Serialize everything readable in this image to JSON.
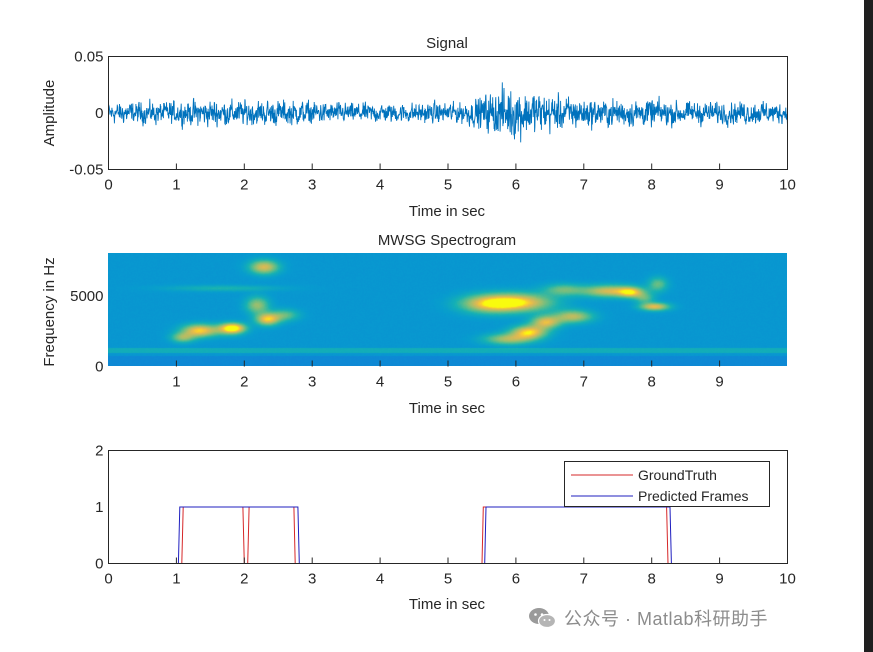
{
  "figure": {
    "plots": [
      {
        "id": "signal",
        "chart_data": {
          "type": "line",
          "title": "Signal",
          "xlabel": "Time in sec",
          "ylabel": "Amplitude",
          "xlim": [
            0,
            10
          ],
          "ylim": [
            -0.05,
            0.05
          ],
          "xticks": [
            "0",
            "1",
            "2",
            "3",
            "4",
            "5",
            "6",
            "7",
            "8",
            "9",
            "10"
          ],
          "yticks": [
            "0.05",
            "0",
            "-0.05"
          ],
          "series": [
            {
              "name": "signal",
              "color": "#0072bd",
              "envelope_t": [
                0,
                0.5,
                1,
                1.5,
                2,
                2.5,
                3,
                3.5,
                4,
                4.5,
                5,
                5.3,
                5.5,
                5.7,
                6,
                6.3,
                6.6,
                7,
                7.5,
                8,
                8.5,
                9,
                9.5,
                10
              ],
              "envelope_amp": [
                0.011,
                0.011,
                0.012,
                0.014,
                0.013,
                0.013,
                0.012,
                0.01,
                0.01,
                0.01,
                0.011,
                0.012,
                0.017,
                0.024,
                0.028,
                0.022,
                0.018,
                0.015,
                0.014,
                0.014,
                0.012,
                0.011,
                0.012,
                0.01
              ]
            }
          ]
        }
      },
      {
        "id": "spectrogram",
        "chart_data": {
          "type": "heatmap",
          "title": "MWSG Spectrogram",
          "xlabel": "Time in sec",
          "ylabel": "Frequency in Hz",
          "xlim": [
            0,
            10
          ],
          "ylim": [
            0,
            8000
          ],
          "xticks": [
            "1",
            "2",
            "3",
            "4",
            "5",
            "6",
            "7",
            "8",
            "9"
          ],
          "yticks": [
            "5000",
            "0"
          ],
          "blobs": [
            {
              "t": 1.35,
              "f": 2500,
              "st": 0.18,
              "sf": 320,
              "a": 0.95
            },
            {
              "t": 1.1,
              "f": 2000,
              "st": 0.12,
              "sf": 250,
              "a": 0.55
            },
            {
              "t": 1.8,
              "f": 2600,
              "st": 0.15,
              "sf": 300,
              "a": 0.6
            },
            {
              "t": 1.85,
              "f": 2700,
              "st": 0.12,
              "sf": 240,
              "a": 0.7
            },
            {
              "t": 2.2,
              "f": 4300,
              "st": 0.12,
              "sf": 420,
              "a": 0.6
            },
            {
              "t": 2.35,
              "f": 3300,
              "st": 0.12,
              "sf": 300,
              "a": 0.9
            },
            {
              "t": 2.3,
              "f": 7000,
              "st": 0.15,
              "sf": 350,
              "a": 0.8
            },
            {
              "t": 2.6,
              "f": 3600,
              "st": 0.15,
              "sf": 300,
              "a": 0.45
            },
            {
              "t": 1.7,
              "f": 5500,
              "st": 0.6,
              "sf": 150,
              "a": 0.25
            },
            {
              "t": 5.6,
              "f": 4400,
              "st": 0.3,
              "sf": 450,
              "a": 0.75
            },
            {
              "t": 6.05,
              "f": 4500,
              "st": 0.35,
              "sf": 450,
              "a": 0.9
            },
            {
              "t": 5.9,
              "f": 1900,
              "st": 0.25,
              "sf": 280,
              "a": 0.65
            },
            {
              "t": 6.2,
              "f": 2400,
              "st": 0.18,
              "sf": 320,
              "a": 0.95
            },
            {
              "t": 6.45,
              "f": 3100,
              "st": 0.15,
              "sf": 320,
              "a": 0.8
            },
            {
              "t": 6.85,
              "f": 3500,
              "st": 0.2,
              "sf": 320,
              "a": 0.7
            },
            {
              "t": 6.7,
              "f": 5400,
              "st": 0.2,
              "sf": 300,
              "a": 0.45
            },
            {
              "t": 7.4,
              "f": 5300,
              "st": 0.3,
              "sf": 300,
              "a": 0.8
            },
            {
              "t": 7.7,
              "f": 5200,
              "st": 0.12,
              "sf": 250,
              "a": 0.65
            },
            {
              "t": 8.05,
              "f": 4200,
              "st": 0.15,
              "sf": 200,
              "a": 0.85
            },
            {
              "t": 8.1,
              "f": 5800,
              "st": 0.1,
              "sf": 350,
              "a": 0.45
            },
            {
              "t": 7.9,
              "f": 4800,
              "st": 0.1,
              "sf": 250,
              "a": 0.4
            }
          ]
        }
      },
      {
        "id": "frames",
        "chart_data": {
          "type": "line",
          "xlabel": "Time in sec",
          "xlim": [
            0,
            10
          ],
          "ylim": [
            0,
            2
          ],
          "xticks": [
            "0",
            "1",
            "2",
            "3",
            "4",
            "5",
            "6",
            "7",
            "8",
            "9",
            "10"
          ],
          "yticks": [
            "2",
            "1",
            "0"
          ],
          "legend_position": "top-right",
          "series": [
            {
              "name": "GroundTruth",
              "color": "#d62728",
              "x": [
                0,
                1.08,
                1.1,
                1.98,
                2.0,
                2.05,
                2.07,
                2.73,
                2.75,
                5.5,
                5.52,
                8.22,
                8.24,
                10
              ],
              "y": [
                0,
                0,
                1,
                1,
                0,
                0,
                1,
                1,
                0,
                0,
                1,
                1,
                0,
                0
              ]
            },
            {
              "name": "Predicted Frames",
              "color": "#1f1fbf",
              "x": [
                0,
                1.03,
                1.05,
                2.79,
                2.81,
                5.54,
                5.56,
                8.27,
                8.29,
                10
              ],
              "y": [
                0,
                0,
                1,
                1,
                0,
                0,
                1,
                1,
                0,
                0
              ]
            }
          ]
        }
      }
    ]
  },
  "watermark": {
    "text": "公众号 · Matlab科研助手"
  }
}
